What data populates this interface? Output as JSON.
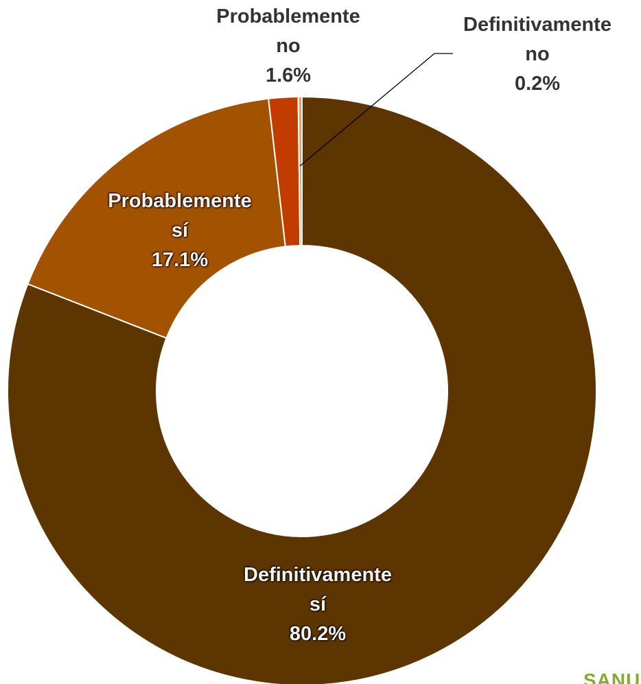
{
  "chart_data": {
    "type": "donut",
    "categories": [
      "Definitivamente sí",
      "Probablemente sí",
      "Probablemente no",
      "Definitivamente no"
    ],
    "values": [
      80.2,
      17.1,
      1.6,
      0.2
    ],
    "value_labels": [
      "80.2%",
      "17.1%",
      "1.6%",
      "0.2%"
    ],
    "colors": [
      "#5c3500",
      "#a35200",
      "#c23c00",
      "#e0a070"
    ]
  },
  "logo": "SANU"
}
